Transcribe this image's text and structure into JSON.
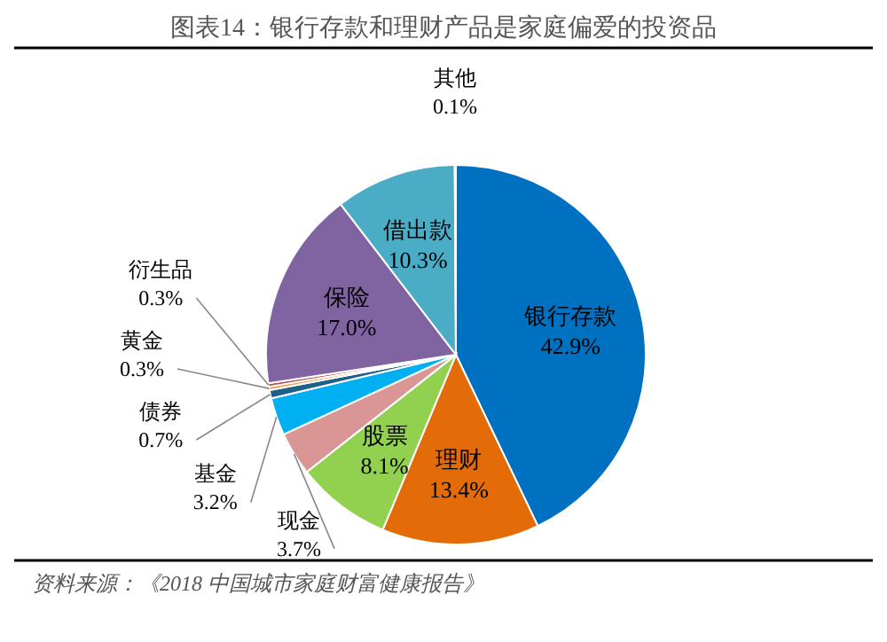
{
  "chart_data": {
    "type": "pie",
    "title": "图表14：银行存款和理财产品是家庭偏爱的投资品",
    "categories": [
      "银行存款",
      "理财",
      "股票",
      "现金",
      "基金",
      "债券",
      "黄金",
      "衍生品",
      "保险",
      "借出款",
      "其他"
    ],
    "values": [
      42.9,
      13.4,
      8.1,
      3.7,
      3.2,
      0.7,
      0.3,
      0.3,
      17.0,
      10.3,
      0.1
    ],
    "value_labels": [
      "42.9%",
      "13.4%",
      "8.1%",
      "3.7%",
      "3.2%",
      "0.7%",
      "0.3%",
      "0.3%",
      "17.0%",
      "10.3%",
      "0.1%"
    ],
    "colors": [
      "#0070c0",
      "#e36c09",
      "#92d050",
      "#d99694",
      "#00b0f0",
      "#1f5f8b",
      "#f79646",
      "#c0504d",
      "#8064a2",
      "#4bacc6",
      "#bfbfbf"
    ],
    "annotations": [
      "资料来源：《2018 中国城市家庭财富健康报告》"
    ]
  }
}
